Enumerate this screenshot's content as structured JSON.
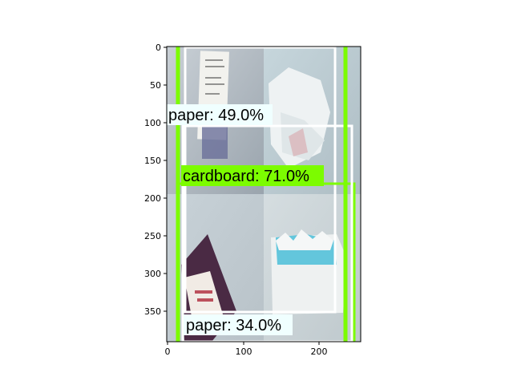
{
  "figure": {
    "x_ticks": [
      "0",
      "100",
      "200"
    ],
    "y_ticks": [
      "0",
      "50",
      "100",
      "150",
      "200",
      "250",
      "300",
      "350"
    ]
  },
  "colors": {
    "box_green": "#7cfc00",
    "box_white": "#ffffff",
    "label_paper_bg": "#f0ffff",
    "label_cardboard_bg": "#7cfc00"
  },
  "detections": [
    {
      "label": "paper: 49.0%",
      "class": "paper",
      "score": 49.0,
      "color": "#ffffff"
    },
    {
      "label": "cardboard: 71.0%",
      "class": "cardboard",
      "score": 71.0,
      "color": "#7cfc00"
    },
    {
      "label": "paper: 34.0%",
      "class": "paper",
      "score": 34.0,
      "color": "#ffffff"
    }
  ]
}
